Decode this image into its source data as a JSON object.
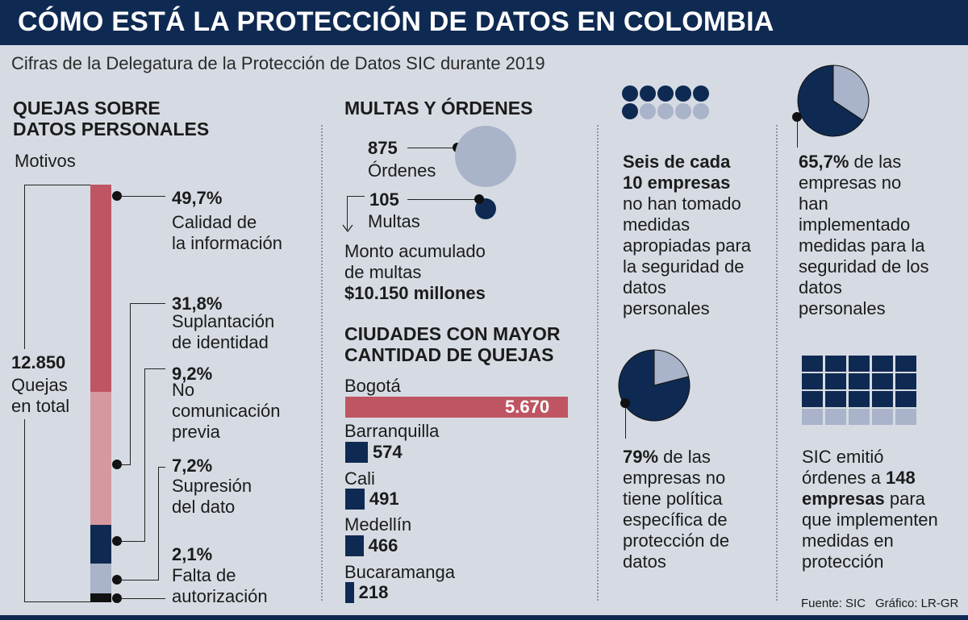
{
  "header": {
    "title": "CÓMO ESTÁ LA PROTECCIÓN DE DATOS EN COLOMBIA"
  },
  "subtitle": "Cifras de la Delegatura de la Protección de Datos SIC durante 2019",
  "quejas": {
    "title_line1": "QUEJAS SOBRE",
    "title_line2": "DATOS PERSONALES",
    "motivos": "Motivos",
    "total_value": "12.850",
    "total_line1": "Quejas",
    "total_line2": "en total"
  },
  "multas": {
    "title": "MULTAS Y ÓRDENES",
    "ordenes_value": "875",
    "ordenes_label": "Órdenes",
    "multas_value": "105",
    "multas_label": "Multas",
    "monto_line1": "Monto acumulado",
    "monto_line2": "de multas",
    "monto_value": "$10.150 millones"
  },
  "ciudades": {
    "title_line1": "CIUDADES CON MAYOR",
    "title_line2": "CANTIDAD DE QUEJAS"
  },
  "stat_seis": {
    "bold_line1": "Seis de cada",
    "bold_line2": "10 empresas",
    "lines": [
      "no han tomado",
      "medidas",
      "apropiadas para",
      "la seguridad de",
      "datos",
      "personales"
    ]
  },
  "stat_657": {
    "value": "65,7%",
    "first_rest": " de las",
    "lines": [
      "empresas no",
      "han",
      "implementado",
      "medidas para la",
      "seguridad de los",
      "datos",
      "personales"
    ]
  },
  "stat_79": {
    "value": "79%",
    "first_rest": " de las",
    "lines": [
      "empresas no",
      "tiene política",
      "específica de",
      "protección de",
      "datos"
    ]
  },
  "stat_sic": {
    "line1": "SIC emitió",
    "line2_pre": "órdenes a ",
    "line2_bold": "148",
    "line3_bold": "empresas",
    "line3_post": " para",
    "lines": [
      "que implementen",
      "medidas en",
      "protección"
    ]
  },
  "footer": {
    "fuente": "Fuente: SIC",
    "grafico": "Gráfico: LR-GR"
  },
  "colors": {
    "navy": "#0f2a52",
    "red": "#bf5562",
    "pink": "#d4989e",
    "lavender": "#a9b3c9",
    "black": "#111111"
  },
  "chart_data": [
    {
      "type": "bar",
      "orientation": "stacked-vertical",
      "categories": [
        "Calidad de la información",
        "Suplantación de identidad",
        "No comunicación previa",
        "Supresión del dato",
        "Falta de autorización"
      ],
      "values": [
        49.7,
        31.8,
        9.2,
        7.2,
        2.1
      ],
      "labels": [
        "49,7%",
        "31,8%",
        "9,2%",
        "7,2%",
        "2,1%"
      ],
      "label_lines": [
        [
          "Calidad de",
          "la información"
        ],
        [
          "Suplantación",
          "de identidad"
        ],
        [
          "No",
          "comunicación",
          "previa"
        ],
        [
          "Supresión",
          "del dato"
        ],
        [
          "Falta de",
          "autorización"
        ]
      ],
      "colors": [
        "#bf5562",
        "#d4989e",
        "#0f2a52",
        "#a9b3c9",
        "#111111"
      ]
    },
    {
      "type": "bar",
      "orientation": "horizontal",
      "categories": [
        "Bogotá",
        "Barranquilla",
        "Cali",
        "Medellín",
        "Bucaramanga"
      ],
      "values": [
        5670,
        574,
        491,
        466,
        218
      ],
      "labels": [
        "5.670",
        "574",
        "491",
        "466",
        "218"
      ],
      "colors": [
        "#bf5562",
        "#0f2a52",
        "#0f2a52",
        "#0f2a52",
        "#0f2a52"
      ]
    },
    {
      "type": "pie",
      "slices": [
        65.7,
        34.3
      ],
      "colors": [
        "#0f2a52",
        "#a9b3c9"
      ]
    },
    {
      "type": "pie",
      "slices": [
        79,
        21
      ],
      "colors": [
        "#0f2a52",
        "#a9b3c9"
      ]
    },
    {
      "type": "table",
      "dots_filled": 6,
      "dots_total": 10
    },
    {
      "type": "table",
      "cells_filled": 15,
      "cells_total": 20
    }
  ]
}
